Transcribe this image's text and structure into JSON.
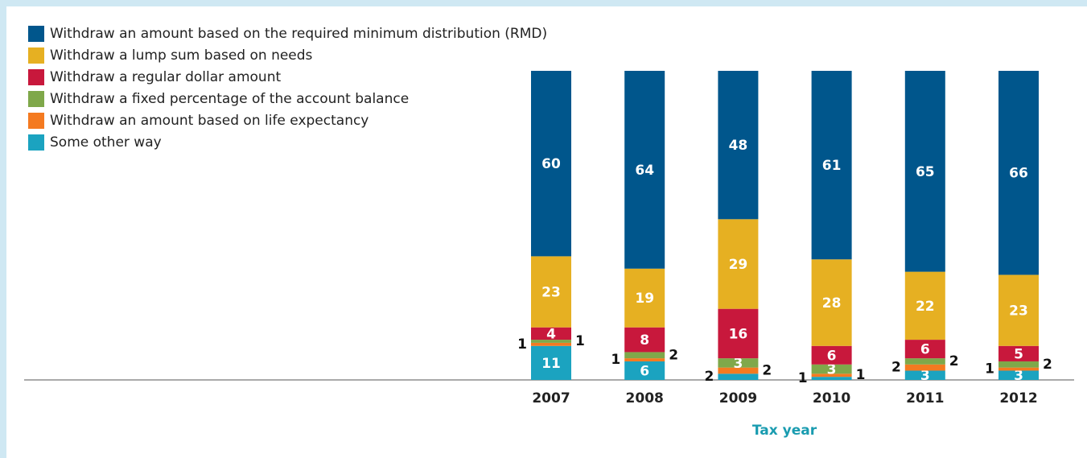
{
  "chart_data": {
    "type": "stacked-bar",
    "x_label": "Tax year",
    "categories": [
      "2007",
      "2008",
      "2009",
      "2010",
      "2011",
      "2012"
    ],
    "ylim": [
      0,
      100
    ],
    "series": [
      {
        "name": "Withdraw an amount based on the required minimum distribution (RMD)",
        "color": "#00568c",
        "values": [
          60,
          64,
          48,
          61,
          65,
          66
        ]
      },
      {
        "name": "Withdraw a lump sum based on needs",
        "color": "#e6b022",
        "values": [
          23,
          19,
          29,
          28,
          22,
          23
        ]
      },
      {
        "name": "Withdraw a regular dollar amount",
        "color": "#c8183c",
        "values": [
          4,
          8,
          16,
          6,
          6,
          5
        ]
      },
      {
        "name": "Withdraw a fixed percentage of the account balance",
        "color": "#7fa84a",
        "values": [
          1,
          2,
          3,
          3,
          2,
          2
        ]
      },
      {
        "name": "Withdraw an amount based on life expectancy",
        "color": "#f47a20",
        "values": [
          1,
          1,
          2,
          1,
          2,
          1
        ]
      },
      {
        "name": "Some other way",
        "color": "#1ba3c0",
        "values": [
          11,
          6,
          2,
          1,
          3,
          3
        ]
      }
    ]
  }
}
